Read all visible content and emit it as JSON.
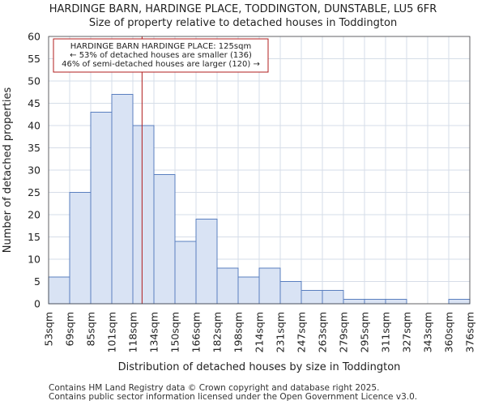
{
  "chart_data": {
    "type": "histogram",
    "title": "HARDINGE BARN, HARDINGE PLACE, TODDINGTON, DUNSTABLE, LU5 6FR",
    "subtitle": "Size of property relative to detached houses in Toddington",
    "xlabel": "Distribution of detached houses by size in Toddington",
    "ylabel": "Number of detached properties",
    "categories": [
      "53sqm",
      "69sqm",
      "85sqm",
      "101sqm",
      "118sqm",
      "134sqm",
      "150sqm",
      "166sqm",
      "182sqm",
      "198sqm",
      "214sqm",
      "231sqm",
      "247sqm",
      "263sqm",
      "279sqm",
      "295sqm",
      "311sqm",
      "327sqm",
      "343sqm",
      "360sqm",
      "376sqm"
    ],
    "values": [
      6,
      25,
      43,
      47,
      40,
      29,
      14,
      19,
      8,
      6,
      8,
      5,
      3,
      3,
      1,
      1,
      1,
      0,
      0,
      1
    ],
    "ylim": [
      0,
      60
    ],
    "yticks": [
      0,
      5,
      10,
      15,
      20,
      25,
      30,
      35,
      40,
      45,
      50,
      55,
      60
    ],
    "bar_fill": "#d9e3f4",
    "bar_stroke": "#5a7fbf",
    "grid_color": "#d6dde8",
    "marker": {
      "value_sqm": 125,
      "color": "#b01c1c",
      "lines": [
        "HARDINGE BARN HARDINGE PLACE: 125sqm",
        "← 53% of detached houses are smaller (136)",
        "46% of semi-detached houses are larger (120) →"
      ]
    }
  },
  "footer": {
    "line1": "Contains HM Land Registry data © Crown copyright and database right 2025.",
    "line2": "Contains public sector information licensed under the Open Government Licence v3.0."
  }
}
